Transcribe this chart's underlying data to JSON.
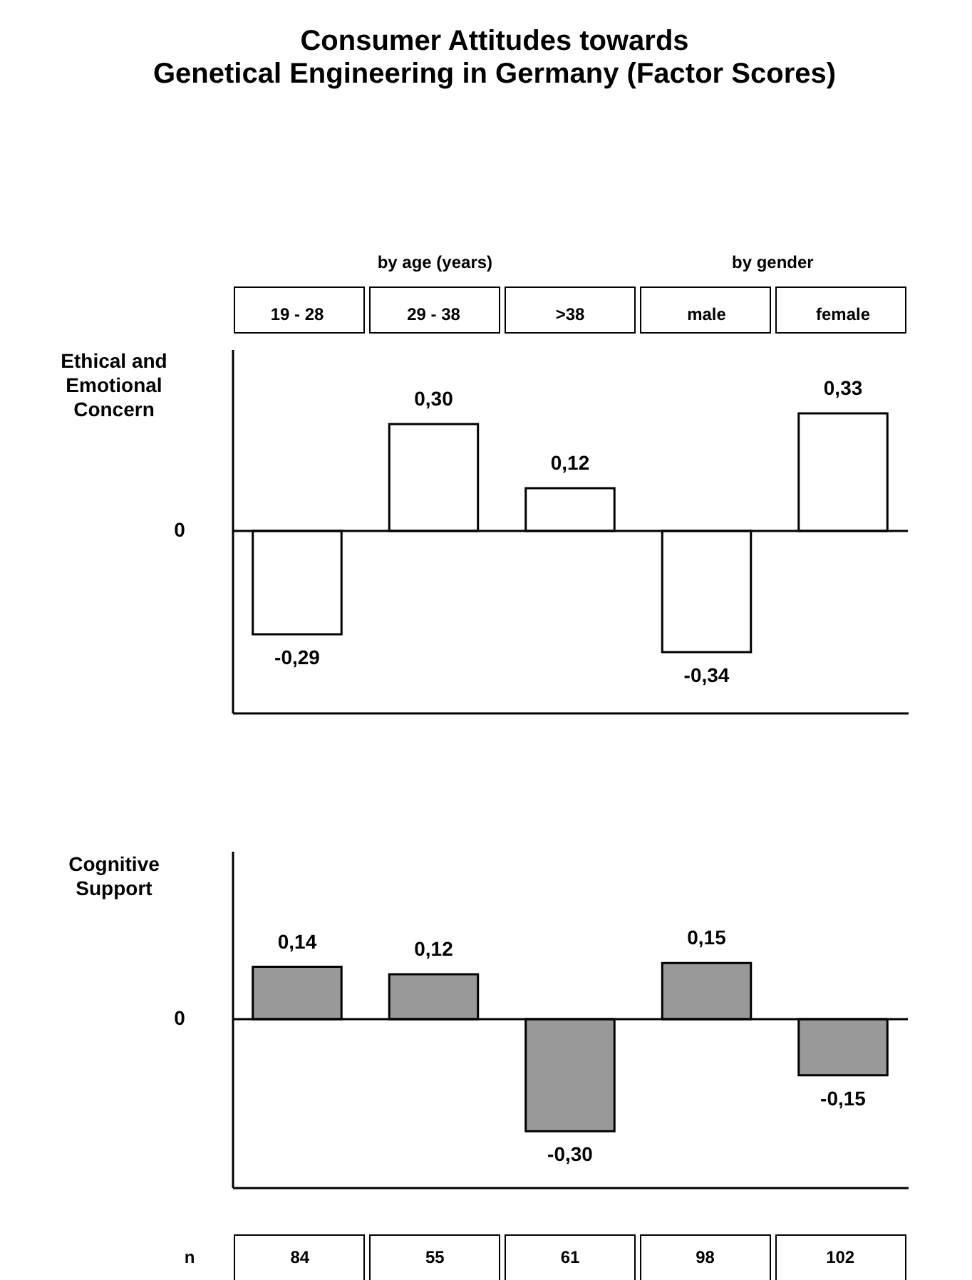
{
  "chart_data": [
    {
      "type": "bar",
      "title": "Consumer Attitudes towards\nGenetical Engineering in Germany (Factor Scores)",
      "ylabel": "Ethical and Emotional Concern",
      "categories": [
        "19 - 28",
        "29 - 38",
        ">38",
        "male",
        "female"
      ],
      "values": [
        -0.29,
        0.3,
        0.12,
        -0.34,
        0.33
      ],
      "color": "#ffffff",
      "value_labels": [
        "-0,29",
        "0,30",
        "0,12",
        "-0,34",
        "0,33"
      ],
      "ref_lines": [
        {
          "axis": "y",
          "value": 0,
          "label": "0"
        }
      ],
      "annotations": [
        "by age (years)",
        "by gender"
      ]
    },
    {
      "type": "bar",
      "ylabel": "Cognitive Support",
      "categories": [
        null,
        null,
        null,
        null,
        null
      ],
      "values": [
        0.14,
        0.12,
        -0.3,
        0.15,
        -0.15
      ],
      "color": "#999999",
      "value_labels": [
        "0,14",
        "0,12",
        "-0,30",
        "0,15",
        "-0,15"
      ],
      "ref_lines": [
        {
          "axis": "y",
          "value": 0,
          "label": "0"
        }
      ],
      "annotations": [
        "n",
        "84",
        "55",
        "61",
        "98",
        "102"
      ]
    }
  ]
}
